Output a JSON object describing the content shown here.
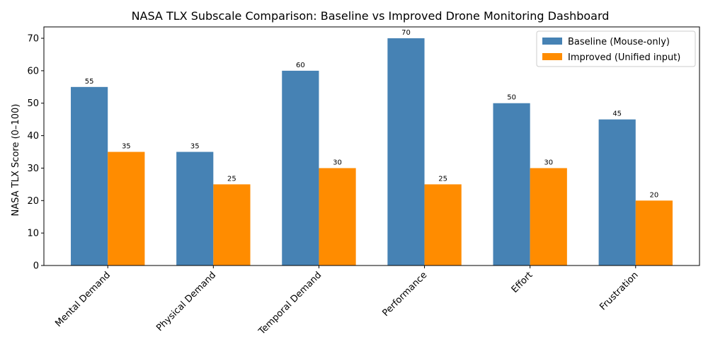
{
  "chart_data": {
    "type": "bar",
    "title": "NASA TLX Subscale Comparison: Baseline vs Improved Drone Monitoring Dashboard",
    "xlabel": "",
    "ylabel": "NASA TLX Score (0–100)",
    "ylim": [
      0,
      73.5
    ],
    "yticks": [
      0,
      10,
      20,
      30,
      40,
      50,
      60,
      70
    ],
    "categories": [
      "Mental Demand",
      "Physical Demand",
      "Temporal Demand",
      "Performance",
      "Effort",
      "Frustration"
    ],
    "series": [
      {
        "name": "Baseline (Mouse-only)",
        "color": "#4682b4",
        "values": [
          55,
          35,
          60,
          70,
          50,
          45
        ]
      },
      {
        "name": "Improved (Unified input)",
        "color": "#ff8c00",
        "values": [
          35,
          25,
          30,
          25,
          30,
          20
        ]
      }
    ],
    "legend_position": "top-right",
    "grid": false
  }
}
